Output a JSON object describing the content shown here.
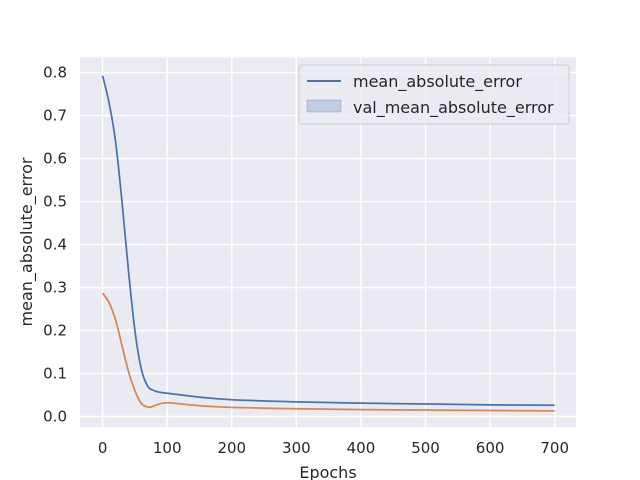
{
  "chart_data": {
    "type": "line",
    "title": "",
    "xlabel": "Epochs",
    "ylabel": "mean_absolute_error",
    "xlim": [
      -35,
      733
    ],
    "ylim": [
      -0.025,
      0.835
    ],
    "x_ticks": [
      0,
      100,
      200,
      300,
      400,
      500,
      600,
      700
    ],
    "y_ticks": [
      0.0,
      0.1,
      0.2,
      0.3,
      0.4,
      0.5,
      0.6,
      0.7,
      0.8
    ],
    "y_tick_labels": [
      "0.0",
      "0.1",
      "0.2",
      "0.3",
      "0.4",
      "0.5",
      "0.6",
      "0.7",
      "0.8"
    ],
    "grid": true,
    "legend_placement": "upper right",
    "legend": [
      {
        "label": "mean_absolute_error",
        "marker": "line",
        "color": "#4c72b0"
      },
      {
        "label": "val_mean_absolute_error",
        "marker": "patch",
        "color": "#4c72b0"
      }
    ],
    "colors": {
      "background": "#eaeaf2",
      "grid": "#ffffff"
    },
    "series": [
      {
        "color": "#4c72b0",
        "x": [
          0,
          10,
          20,
          30,
          40,
          50,
          60,
          70,
          80,
          90,
          100,
          150,
          200,
          300,
          400,
          500,
          600,
          700
        ],
        "y": [
          0.793,
          0.73,
          0.64,
          0.5,
          0.34,
          0.2,
          0.11,
          0.07,
          0.06,
          0.056,
          0.054,
          0.045,
          0.039,
          0.034,
          0.031,
          0.029,
          0.027,
          0.026
        ]
      },
      {
        "color": "#dd8452",
        "x": [
          0,
          10,
          20,
          30,
          40,
          50,
          60,
          70,
          75,
          80,
          90,
          100,
          110,
          150,
          200,
          300,
          400,
          500,
          600,
          700
        ],
        "y": [
          0.287,
          0.265,
          0.225,
          0.165,
          0.105,
          0.06,
          0.03,
          0.022,
          0.022,
          0.025,
          0.03,
          0.032,
          0.031,
          0.025,
          0.021,
          0.018,
          0.016,
          0.015,
          0.014,
          0.013
        ]
      }
    ]
  }
}
